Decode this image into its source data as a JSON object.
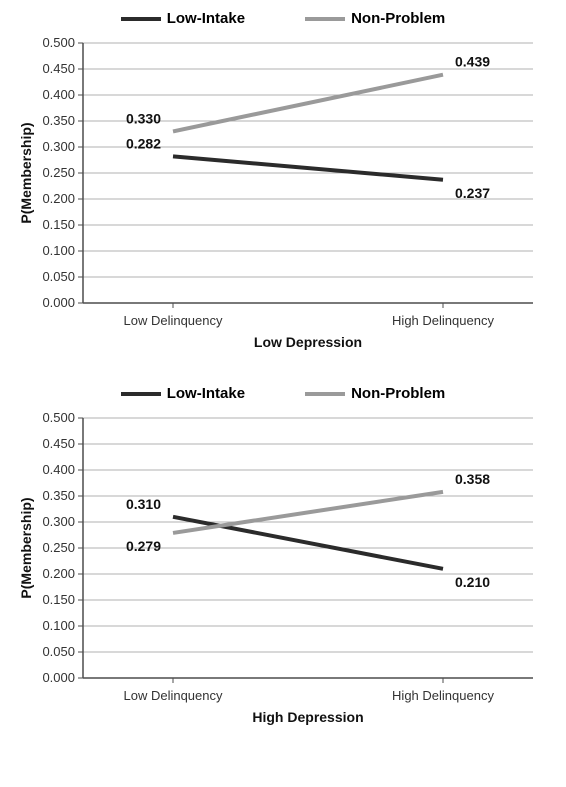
{
  "charts": [
    {
      "title": "Low Depression",
      "ylabel": "P(Membership)",
      "ylim": [
        0,
        0.5
      ],
      "ytick_step": 0.05,
      "ytick_decimals": 3,
      "x_categories": [
        "Low Delinquency",
        "High Delinquency"
      ],
      "series": [
        {
          "name": "Low-Intake",
          "color": "#2b2b2b",
          "width": 4,
          "values": [
            0.282,
            0.237
          ],
          "label_positions": [
            "above-left",
            "below-right"
          ]
        },
        {
          "name": "Non-Problem",
          "color": "#9a9a9a",
          "width": 4,
          "values": [
            0.33,
            0.439
          ],
          "label_positions": [
            "above-left",
            "above-right"
          ]
        }
      ],
      "label_fontsize": 14,
      "label_fontweight": "bold",
      "axis_fontsize": 14,
      "axis_fontweight": "bold",
      "tick_fontsize": 13,
      "grid_color": "#b0b0b0",
      "axis_color": "#4d4d4d",
      "background": "#ffffff"
    },
    {
      "title": "High Depression",
      "ylabel": "P(Membership)",
      "ylim": [
        0,
        0.5
      ],
      "ytick_step": 0.05,
      "ytick_decimals": 3,
      "x_categories": [
        "Low Delinquency",
        "High Delinquency"
      ],
      "series": [
        {
          "name": "Low-Intake",
          "color": "#2b2b2b",
          "width": 4,
          "values": [
            0.31,
            0.21
          ],
          "label_positions": [
            "above-left",
            "below-right"
          ]
        },
        {
          "name": "Non-Problem",
          "color": "#9a9a9a",
          "width": 4,
          "values": [
            0.279,
            0.358
          ],
          "label_positions": [
            "below-left",
            "above-right"
          ]
        }
      ],
      "label_fontsize": 14,
      "label_fontweight": "bold",
      "axis_fontsize": 14,
      "axis_fontweight": "bold",
      "tick_fontsize": 13,
      "grid_color": "#b0b0b0",
      "axis_color": "#4d4d4d",
      "background": "#ffffff"
    }
  ],
  "legend_items": [
    {
      "name": "Low-Intake",
      "color": "#2b2b2b"
    },
    {
      "name": "Non-Problem",
      "color": "#9a9a9a"
    }
  ]
}
